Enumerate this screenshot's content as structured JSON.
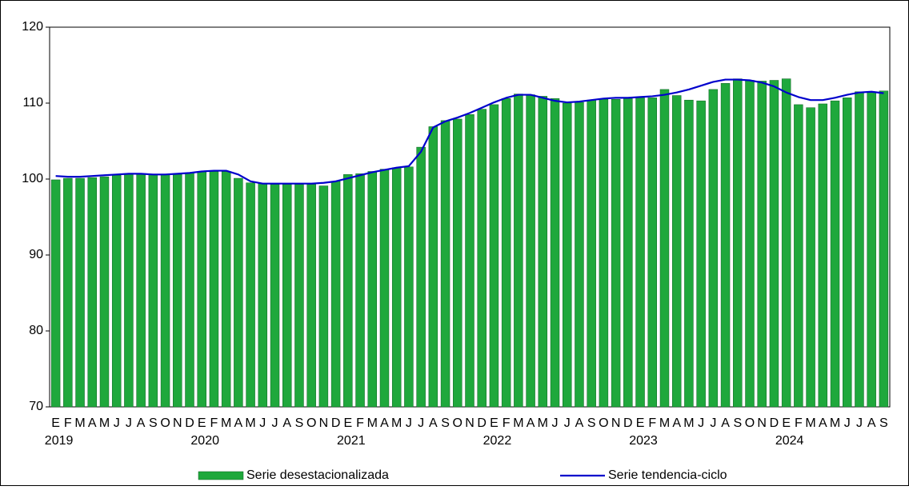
{
  "chart_data": {
    "type": "bar",
    "categories": [
      "E",
      "F",
      "M",
      "A",
      "M",
      "J",
      "J",
      "A",
      "S",
      "O",
      "N",
      "D",
      "E",
      "F",
      "M",
      "A",
      "M",
      "J",
      "J",
      "A",
      "S",
      "O",
      "N",
      "D",
      "E",
      "F",
      "M",
      "A",
      "M",
      "J",
      "J",
      "A",
      "S",
      "O",
      "N",
      "D",
      "E",
      "F",
      "M",
      "A",
      "M",
      "J",
      "J",
      "A",
      "S",
      "O",
      "N",
      "D",
      "E",
      "F",
      "M",
      "A",
      "M",
      "J",
      "J",
      "A",
      "S",
      "O",
      "N",
      "D",
      "E",
      "F",
      "M",
      "A",
      "M",
      "J",
      "J",
      "A",
      "S"
    ],
    "years": [
      "2019",
      null,
      null,
      null,
      null,
      null,
      null,
      null,
      null,
      null,
      null,
      null,
      "2020",
      null,
      null,
      null,
      null,
      null,
      null,
      null,
      null,
      null,
      null,
      null,
      "2021",
      null,
      null,
      null,
      null,
      null,
      null,
      null,
      null,
      null,
      null,
      null,
      "2022",
      null,
      null,
      null,
      null,
      null,
      null,
      null,
      null,
      null,
      null,
      null,
      "2023",
      null,
      null,
      null,
      null,
      null,
      null,
      null,
      null,
      null,
      null,
      null,
      "2024",
      null,
      null,
      null,
      null,
      null,
      null,
      null,
      null
    ],
    "series": [
      {
        "name": "Serie desestacionalizada",
        "type": "bar",
        "color": "#1fa83c",
        "values": [
          99.9,
          100.1,
          100.1,
          100.2,
          100.3,
          100.5,
          100.7,
          100.6,
          100.6,
          100.6,
          100.6,
          100.8,
          101.0,
          101.0,
          101.0,
          100.1,
          99.5,
          99.4,
          99.3,
          99.3,
          99.3,
          99.3,
          99.1,
          99.7,
          100.6,
          100.7,
          101.0,
          101.3,
          101.5,
          101.6,
          104.2,
          106.9,
          107.7,
          107.9,
          108.5,
          109.2,
          109.8,
          110.6,
          111.2,
          111.1,
          110.9,
          110.6,
          110.0,
          110.1,
          110.4,
          110.5,
          110.5,
          110.6,
          110.7,
          110.7,
          111.8,
          111.0,
          110.4,
          110.3,
          111.8,
          112.6,
          113.2,
          113.0,
          112.9,
          113.0,
          113.2,
          109.8,
          109.4,
          109.9,
          110.3,
          110.7,
          111.5,
          111.4,
          111.6
        ]
      },
      {
        "name": "Serie tendencia-ciclo",
        "type": "line",
        "color": "#0000cc",
        "values": [
          100.4,
          100.3,
          100.3,
          100.4,
          100.5,
          100.6,
          100.7,
          100.7,
          100.6,
          100.6,
          100.7,
          100.8,
          101.0,
          101.1,
          101.1,
          100.6,
          99.7,
          99.4,
          99.4,
          99.4,
          99.4,
          99.4,
          99.5,
          99.7,
          100.1,
          100.5,
          100.9,
          101.2,
          101.5,
          101.7,
          103.6,
          106.8,
          107.6,
          108.1,
          108.7,
          109.4,
          110.1,
          110.7,
          111.1,
          111.1,
          110.7,
          110.3,
          110.1,
          110.2,
          110.4,
          110.6,
          110.7,
          110.7,
          110.8,
          110.9,
          111.1,
          111.4,
          111.8,
          112.3,
          112.8,
          113.1,
          113.1,
          113.0,
          112.7,
          112.2,
          111.4,
          110.8,
          110.4,
          110.4,
          110.7,
          111.1,
          111.4,
          111.5,
          111.3
        ]
      }
    ],
    "ylim": [
      70,
      120
    ],
    "yticks": [
      70,
      80,
      90,
      100,
      110,
      120
    ],
    "grid": false
  }
}
